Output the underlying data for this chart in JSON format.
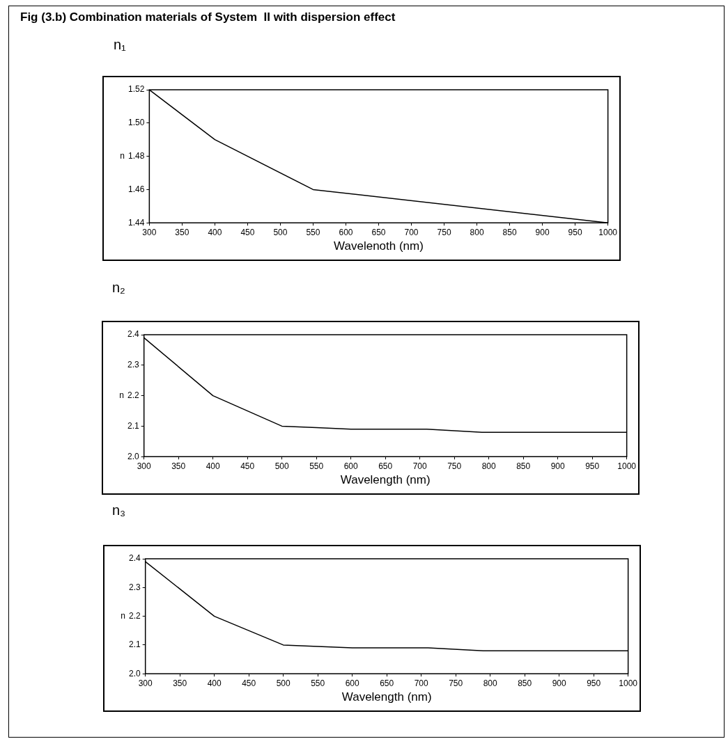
{
  "chart_data": [
    {
      "type": "line",
      "title": "n₁",
      "xlabel": "Wavelenoth (nm)",
      "ylabel": "n",
      "annotations": [
        "Fig (3.b) Combination materials of System  II with dispersion effect"
      ],
      "x": [
        300,
        400,
        550,
        1000
      ],
      "values": [
        1.52,
        1.49,
        1.46,
        1.44
      ],
      "color": "#000000",
      "xlim": [
        300,
        1000
      ],
      "xticks": [
        300,
        350,
        400,
        450,
        500,
        550,
        600,
        650,
        700,
        750,
        800,
        850,
        900,
        950,
        1000
      ],
      "ylim": [
        1.44,
        1.52
      ],
      "yticks": [
        {
          "value": 1.44,
          "label": "1.44"
        },
        {
          "value": 1.46,
          "label": "1.46"
        },
        {
          "value": 1.48,
          "label": "1.48"
        },
        {
          "value": 1.5,
          "label": "1.50"
        },
        {
          "value": 1.52,
          "label": "1.52"
        }
      ]
    },
    {
      "type": "line",
      "title": "n₂",
      "xlabel": "Wavelength (nm)",
      "ylabel": "n",
      "x": [
        300,
        400,
        500,
        550,
        600,
        710,
        790,
        1000
      ],
      "values": [
        2.39,
        2.2,
        2.1,
        2.095,
        2.09,
        2.09,
        2.08,
        2.08
      ],
      "color": "#000000",
      "xlim": [
        300,
        1000
      ],
      "xticks": [
        300,
        350,
        400,
        450,
        500,
        550,
        600,
        650,
        700,
        750,
        800,
        850,
        900,
        950,
        1000
      ],
      "ylim": [
        2.0,
        2.4
      ],
      "yticks": [
        {
          "value": 2.0,
          "label": "2.0"
        },
        {
          "value": 2.1,
          "label": "2.1"
        },
        {
          "value": 2.2,
          "label": "2.2"
        },
        {
          "value": 2.3,
          "label": "2.3"
        },
        {
          "value": 2.4,
          "label": "2.4"
        }
      ]
    },
    {
      "type": "line",
      "title": "n₃",
      "xlabel": "Wavelength (nm)",
      "ylabel": "n",
      "x": [
        300,
        400,
        500,
        550,
        600,
        710,
        790,
        1000
      ],
      "values": [
        2.39,
        2.2,
        2.1,
        2.095,
        2.09,
        2.09,
        2.08,
        2.08
      ],
      "color": "#000000",
      "xlim": [
        300,
        1000
      ],
      "xticks": [
        300,
        350,
        400,
        450,
        500,
        550,
        600,
        650,
        700,
        750,
        800,
        850,
        900,
        950,
        1000
      ],
      "ylim": [
        2.0,
        2.4
      ],
      "yticks": [
        {
          "value": 2.0,
          "label": "2.0"
        },
        {
          "value": 2.1,
          "label": "2.1"
        },
        {
          "value": 2.2,
          "label": "2.2"
        },
        {
          "value": 2.3,
          "label": "2.3"
        },
        {
          "value": 2.4,
          "label": "2.4"
        }
      ]
    }
  ]
}
